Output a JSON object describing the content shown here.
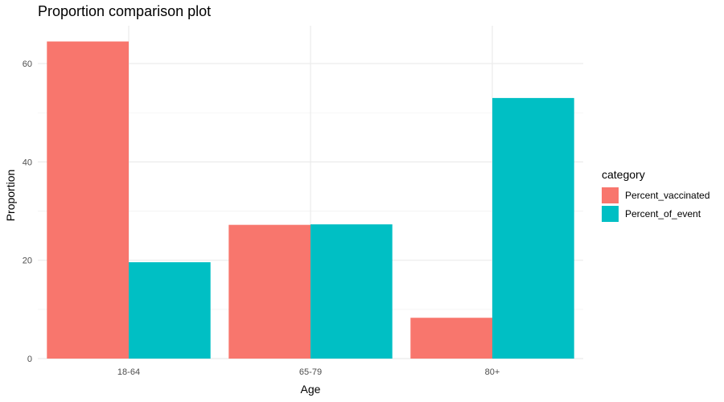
{
  "chart_data": {
    "type": "bar",
    "title": "Proportion comparison plot",
    "xlabel": "Age",
    "ylabel": "Proportion",
    "categories": [
      "18-64",
      "65-79",
      "80+"
    ],
    "series": [
      {
        "name": "Percent_vaccinated",
        "color": "#F8766D",
        "values": [
          64.5,
          27.2,
          8.3
        ]
      },
      {
        "name": "Percent_of_event",
        "color": "#00BFC4",
        "values": [
          19.6,
          27.3,
          53.0
        ]
      }
    ],
    "ylim": [
      0,
      67.7
    ],
    "yticks": [
      0,
      20,
      40,
      60
    ],
    "grid": true,
    "legend": {
      "title": "category",
      "position": "right"
    }
  }
}
